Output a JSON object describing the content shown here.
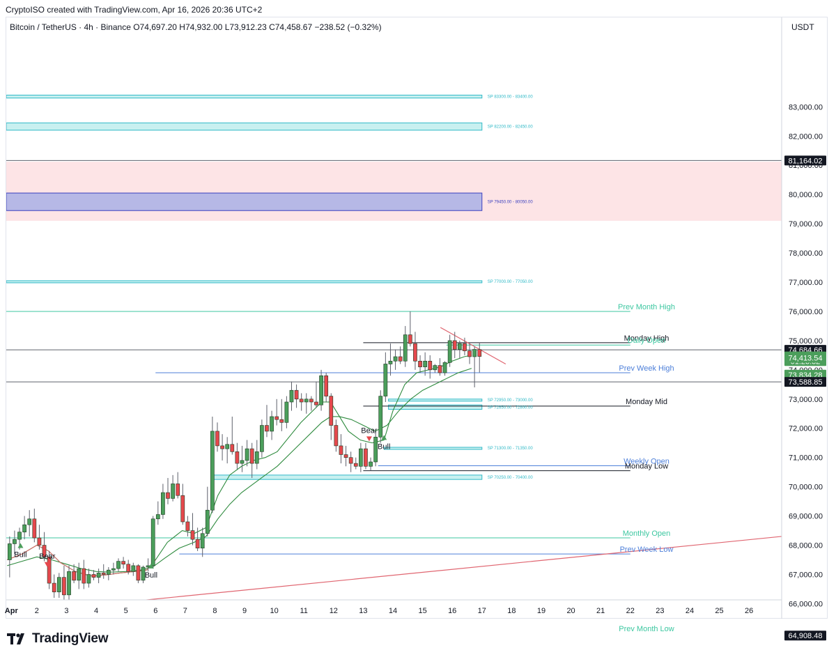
{
  "caption": "CryptoISO created with TradingView.com, Apr 16, 2026 20:36 UTC+2",
  "symbol_bar": {
    "name": "Bitcoin / TetherUS · 4h · Binance",
    "open": "O74,697.20",
    "high": "H74,932.00",
    "low": "L73,912.23",
    "close": "C74,458.67",
    "change": "−238.52 (−0.32%)"
  },
  "currency": "USDT",
  "logo": {
    "text": "TradingView",
    "icon": "tradingview-logo-icon"
  },
  "colors": {
    "bull_candle": "#4b9e5b",
    "bear_candle": "#e5484d",
    "supply_fill": "#c8f0f0",
    "supply_stroke": "#30b9c7",
    "zone_pink": "#fde4e6",
    "zone_blue_fill": "#b6b8e6",
    "zone_blue_stroke": "#3a3fbf",
    "teal_level": "#3cc7a0",
    "blue_level": "#4d7fd9",
    "trend_red": "#e06570",
    "ema_green": "#2d8a3d",
    "ema_red": "#d96a6a"
  },
  "chart_data": {
    "type": "candlestick",
    "timeframe": "4h",
    "y_range": [
      65200,
      84700
    ],
    "y_ticks": [
      66000,
      67000,
      68000,
      69000,
      70000,
      71000,
      72000,
      73000,
      74000,
      75000,
      76000,
      77000,
      78000,
      79000,
      80000,
      81000,
      82000,
      83000
    ],
    "y_tick_labels": [
      "66,000.00",
      "67,000.00",
      "68,000.00",
      "69,000.00",
      "70,000.00",
      "71,000.00",
      "72,000.00",
      "73,000.00",
      "74,000.00",
      "75,000.00",
      "76,000.00",
      "77,000.00",
      "78,000.00",
      "79,000.00",
      "80,000.00",
      "81,000.00",
      "82,000.00",
      "83,000.00"
    ],
    "x_labels": [
      {
        "label": "Apr",
        "day": 1
      },
      {
        "label": "2",
        "day": 2
      },
      {
        "label": "3",
        "day": 3
      },
      {
        "label": "4",
        "day": 4
      },
      {
        "label": "5",
        "day": 5
      },
      {
        "label": "6",
        "day": 6
      },
      {
        "label": "7",
        "day": 7
      },
      {
        "label": "8",
        "day": 8
      },
      {
        "label": "9",
        "day": 9
      },
      {
        "label": "10",
        "day": 10
      },
      {
        "label": "11",
        "day": 11
      },
      {
        "label": "12",
        "day": 12
      },
      {
        "label": "13",
        "day": 13
      },
      {
        "label": "14",
        "day": 14
      },
      {
        "label": "15",
        "day": 15
      },
      {
        "label": "16",
        "day": 16
      },
      {
        "label": "17",
        "day": 17
      },
      {
        "label": "18",
        "day": 18
      },
      {
        "label": "19",
        "day": 19
      },
      {
        "label": "20",
        "day": 20
      },
      {
        "label": "21",
        "day": 21
      },
      {
        "label": "22",
        "day": 22
      },
      {
        "label": "23",
        "day": 23
      },
      {
        "label": "24",
        "day": 24
      },
      {
        "label": "25",
        "day": 25
      },
      {
        "label": "26",
        "day": 26
      }
    ],
    "x_range_days": [
      0.97,
      27.1
    ],
    "price_badges": [
      {
        "value": 81164.02,
        "text": "81,164.02",
        "style": "dark"
      },
      {
        "value": 74684.66,
        "text": "74,684.66",
        "style": "dark"
      },
      {
        "value": 74458.67,
        "text": "74,458.67",
        "style": "green"
      },
      {
        "value": 74300.0,
        "text": "01:23:32",
        "style": "green"
      },
      {
        "value": 74413.54,
        "text": "74,413.54",
        "style": "green"
      },
      {
        "value": 73834.28,
        "text": "73,834.28",
        "style": "green"
      },
      {
        "value": 73588.85,
        "text": "73,588.85",
        "style": "dark"
      },
      {
        "value": 64908.48,
        "text": "64,908.48",
        "style": "dark"
      }
    ],
    "zones": [
      {
        "kind": "supply",
        "low": 83300,
        "high": 83400,
        "from_day": 0.97,
        "to_day": 17.0,
        "label": "SP 83300.00 - 83400.00"
      },
      {
        "kind": "supply",
        "low": 82200,
        "high": 82450,
        "from_day": 0.97,
        "to_day": 17.0,
        "label": "SP 82200.00 - 82450.00"
      },
      {
        "kind": "pink",
        "low": 79100,
        "high": 81120,
        "from_day": 0.97,
        "to_day": 27.1,
        "label": ""
      },
      {
        "kind": "blue",
        "low": 79450,
        "high": 80050,
        "from_day": 0.97,
        "to_day": 17.0,
        "label": "SP 79450.00 - 80050.00"
      },
      {
        "kind": "supply",
        "low": 77000,
        "high": 77050,
        "from_day": 0.97,
        "to_day": 17.0,
        "label": "SP 77000.00 - 77050.00"
      },
      {
        "kind": "supply",
        "low": 72950,
        "high": 73000,
        "from_day": 13.85,
        "to_day": 17.0,
        "label": "SP 72950.00 - 73000.00"
      },
      {
        "kind": "supply",
        "low": 72650,
        "high": 72800,
        "from_day": 13.85,
        "to_day": 17.0,
        "label": "SP 72650.00 - 72800.00"
      },
      {
        "kind": "supply",
        "low": 71300,
        "high": 71350,
        "from_day": 13.7,
        "to_day": 17.0,
        "label": "SP 71300.00 - 71350.00"
      },
      {
        "kind": "supply",
        "low": 70250,
        "high": 70400,
        "from_day": 7.95,
        "to_day": 17.0,
        "label": "SP 70250.00 - 70400.00"
      }
    ],
    "levels": [
      {
        "name": "Prev Month High",
        "value": 76000,
        "from_day": 0.97,
        "to_day": 22.0,
        "color": "teal"
      },
      {
        "name": "Monday High",
        "value": 74930,
        "from_day": 13.0,
        "to_day": 22.0,
        "color": "dark"
      },
      {
        "name": "Daily Open",
        "value": 74850,
        "from_day": 15.8,
        "to_day": 22.0,
        "color": "teal"
      },
      {
        "name": "Prev Week High",
        "value": 73900,
        "from_day": 6.0,
        "to_day": 22.0,
        "color": "blue"
      },
      {
        "name": "Monday Mid",
        "value": 72760,
        "from_day": 13.0,
        "to_day": 22.0,
        "color": "dark"
      },
      {
        "name": "Weekly Open",
        "value": 70720,
        "from_day": 13.5,
        "to_day": 22.0,
        "color": "blue"
      },
      {
        "name": "Monday Low",
        "value": 70550,
        "from_day": 13.0,
        "to_day": 22.0,
        "color": "dark"
      },
      {
        "name": "Monthly Open",
        "value": 68250,
        "from_day": 0.97,
        "to_day": 22.0,
        "color": "teal"
      },
      {
        "name": "Prev Week Low",
        "value": 67700,
        "from_day": 6.8,
        "to_day": 22.0,
        "color": "blue"
      },
      {
        "name": "Prev Month Low",
        "value": 64980,
        "from_day": 0.97,
        "to_day": 22.0,
        "color": "teal"
      }
    ],
    "horizontal_rays": [
      {
        "value": 81164.02
      },
      {
        "value": 74684.66
      },
      {
        "value": 73588.85
      },
      {
        "value": 64908.48
      }
    ],
    "trendlines": [
      {
        "from": [
          0.97,
          65650
        ],
        "to": [
          27.1,
          68300
        ]
      },
      {
        "from": [
          15.6,
          75450
        ],
        "to": [
          17.8,
          74200
        ]
      }
    ],
    "signals": [
      {
        "text": "Bull",
        "day": 1.45,
        "value": 68000,
        "dir": "up"
      },
      {
        "text": "Bear",
        "day": 2.35,
        "value": 67350,
        "dir": "down"
      },
      {
        "text": "Bull",
        "day": 5.85,
        "value": 67300,
        "dir": "up"
      },
      {
        "text": "Bear",
        "day": 13.2,
        "value": 71650,
        "dir": "down"
      },
      {
        "text": "Bull",
        "day": 13.7,
        "value": 71700,
        "dir": "up"
      }
    ],
    "candles_start_day": 1.0,
    "candles_per_day": 6,
    "candles": [
      [
        67500,
        68300,
        66900,
        68050
      ],
      [
        68050,
        68500,
        67700,
        68200
      ],
      [
        68200,
        68600,
        67850,
        68450
      ],
      [
        68450,
        69000,
        68200,
        68700
      ],
      [
        68700,
        69200,
        68300,
        68900
      ],
      [
        68900,
        69250,
        68100,
        68250
      ],
      [
        68250,
        68700,
        67850,
        68000
      ],
      [
        68000,
        68450,
        67450,
        67600
      ],
      [
        67600,
        67800,
        66500,
        66700
      ],
      [
        66700,
        67000,
        66200,
        66400
      ],
      [
        66400,
        67050,
        66200,
        66900
      ],
      [
        66900,
        67300,
        65700,
        66300
      ],
      [
        66300,
        67300,
        66000,
        67100
      ],
      [
        67100,
        67350,
        66700,
        66800
      ],
      [
        66800,
        67400,
        66500,
        67200
      ],
      [
        67200,
        67500,
        66500,
        66700
      ],
      [
        66700,
        67200,
        66550,
        67000
      ],
      [
        67000,
        67150,
        66800,
        66900
      ],
      [
        66900,
        67200,
        66700,
        67050
      ],
      [
        67050,
        67350,
        66850,
        67000
      ],
      [
        67000,
        67250,
        66800,
        67150
      ],
      [
        67150,
        67400,
        67000,
        67200
      ],
      [
        67200,
        67550,
        67100,
        67450
      ],
      [
        67450,
        67600,
        67200,
        67350
      ],
      [
        67350,
        67500,
        67000,
        67100
      ],
      [
        67100,
        67400,
        66950,
        67300
      ],
      [
        67300,
        67350,
        66700,
        66800
      ],
      [
        66800,
        67300,
        66700,
        67250
      ],
      [
        67250,
        67550,
        67100,
        67300
      ],
      [
        67300,
        69000,
        67200,
        68900
      ],
      [
        68900,
        69500,
        68700,
        69050
      ],
      [
        69050,
        70100,
        68900,
        69800
      ],
      [
        69800,
        70300,
        69400,
        69600
      ],
      [
        69600,
        70400,
        69500,
        70100
      ],
      [
        70100,
        70500,
        69600,
        69700
      ],
      [
        69700,
        70100,
        68700,
        68800
      ],
      [
        68800,
        69000,
        68300,
        68500
      ],
      [
        68500,
        69100,
        68000,
        68200
      ],
      [
        68200,
        68600,
        67800,
        67900
      ],
      [
        67900,
        68600,
        67600,
        68400
      ],
      [
        68400,
        70000,
        68300,
        69200
      ],
      [
        69200,
        72400,
        69100,
        71900
      ],
      [
        71900,
        72200,
        71200,
        71400
      ],
      [
        71400,
        71800,
        70900,
        71300
      ],
      [
        71300,
        71700,
        70800,
        71450
      ],
      [
        71450,
        72400,
        71100,
        71200
      ],
      [
        71200,
        71500,
        70600,
        70800
      ],
      [
        70800,
        71400,
        70500,
        70900
      ],
      [
        70900,
        71600,
        70700,
        71300
      ],
      [
        71300,
        71500,
        70300,
        70800
      ],
      [
        70800,
        71600,
        70600,
        71200
      ],
      [
        71200,
        72300,
        71000,
        72100
      ],
      [
        72100,
        72800,
        71700,
        71900
      ],
      [
        71900,
        72600,
        71600,
        72400
      ],
      [
        72400,
        73000,
        72100,
        72300
      ],
      [
        72300,
        73000,
        71900,
        72200
      ],
      [
        72200,
        73100,
        72000,
        72900
      ],
      [
        72900,
        73600,
        72600,
        73300
      ],
      [
        73300,
        73500,
        72700,
        73000
      ],
      [
        73000,
        73200,
        72600,
        72900
      ],
      [
        72900,
        73200,
        72500,
        73000
      ],
      [
        73000,
        73100,
        72600,
        72900
      ],
      [
        72900,
        73600,
        72700,
        72800
      ],
      [
        72800,
        74000,
        72600,
        73800
      ],
      [
        73800,
        73900,
        72900,
        73100
      ],
      [
        73100,
        73200,
        71600,
        72100
      ],
      [
        72100,
        72300,
        71200,
        71400
      ],
      [
        71400,
        71800,
        70800,
        71100
      ],
      [
        71100,
        71400,
        70700,
        71000
      ],
      [
        71000,
        71200,
        70500,
        70800
      ],
      [
        70800,
        71000,
        70600,
        70700
      ],
      [
        70700,
        71500,
        70500,
        71300
      ],
      [
        71300,
        71500,
        70600,
        70700
      ],
      [
        70700,
        71000,
        70550,
        70850
      ],
      [
        70850,
        71900,
        70700,
        71700
      ],
      [
        71700,
        73300,
        71500,
        73100
      ],
      [
        73100,
        74600,
        72900,
        74200
      ],
      [
        74200,
        74900,
        73800,
        74300
      ],
      [
        74300,
        74700,
        74000,
        74450
      ],
      [
        74450,
        74800,
        74200,
        74300
      ],
      [
        74300,
        75500,
        74100,
        75200
      ],
      [
        75200,
        76000,
        74800,
        74900
      ],
      [
        74900,
        75300,
        74000,
        74300
      ],
      [
        74300,
        74500,
        73900,
        74100
      ],
      [
        74100,
        74600,
        73800,
        74300
      ],
      [
        74300,
        74500,
        73700,
        74000
      ],
      [
        74000,
        74200,
        73900,
        74150
      ],
      [
        74150,
        74400,
        73800,
        73900
      ],
      [
        73900,
        74300,
        73800,
        74250
      ],
      [
        74250,
        75200,
        74100,
        75000
      ],
      [
        75000,
        75300,
        74400,
        74700
      ],
      [
        74700,
        75000,
        74400,
        74900
      ],
      [
        74900,
        75100,
        74500,
        74650
      ],
      [
        74650,
        74900,
        74200,
        74450
      ],
      [
        74450,
        74800,
        73400,
        74700
      ],
      [
        74697.2,
        74932,
        73912.23,
        74458.67
      ]
    ],
    "ema_fast": [
      [
        1.0,
        67500
      ],
      [
        1.5,
        67700
      ],
      [
        2.0,
        68000
      ],
      [
        2.4,
        67800
      ],
      [
        2.8,
        67400
      ],
      [
        3.3,
        67100
      ],
      [
        3.8,
        66950
      ],
      [
        4.3,
        66980
      ],
      [
        4.8,
        67050
      ],
      [
        5.3,
        67100
      ],
      [
        5.7,
        67150
      ],
      [
        6.0,
        67500
      ],
      [
        6.4,
        68100
      ],
      [
        6.9,
        68500
      ],
      [
        7.3,
        68400
      ],
      [
        7.7,
        68600
      ],
      [
        8.1,
        69700
      ],
      [
        8.5,
        70400
      ],
      [
        8.9,
        70700
      ],
      [
        9.3,
        70900
      ],
      [
        9.7,
        71000
      ],
      [
        10.1,
        71200
      ],
      [
        10.5,
        71700
      ],
      [
        10.9,
        72200
      ],
      [
        11.3,
        72600
      ],
      [
        11.6,
        72900
      ],
      [
        11.9,
        72900
      ],
      [
        12.2,
        72400
      ],
      [
        12.5,
        71900
      ],
      [
        12.9,
        71600
      ],
      [
        13.3,
        71500
      ],
      [
        13.7,
        71600
      ],
      [
        14.0,
        72600
      ],
      [
        14.4,
        73500
      ],
      [
        14.8,
        73900
      ],
      [
        15.2,
        74000
      ],
      [
        15.6,
        74100
      ],
      [
        16.0,
        74300
      ],
      [
        16.4,
        74450
      ],
      [
        16.65,
        74500
      ]
    ],
    "ema_slow": [
      [
        1.0,
        67300
      ],
      [
        1.5,
        67450
      ],
      [
        2.0,
        67600
      ],
      [
        2.5,
        67500
      ],
      [
        3.0,
        67350
      ],
      [
        3.5,
        67200
      ],
      [
        4.0,
        67100
      ],
      [
        4.5,
        67080
      ],
      [
        5.0,
        67100
      ],
      [
        5.5,
        67150
      ],
      [
        5.9,
        67250
      ],
      [
        6.3,
        67550
      ],
      [
        6.8,
        67900
      ],
      [
        7.3,
        68100
      ],
      [
        7.7,
        68300
      ],
      [
        8.1,
        68900
      ],
      [
        8.5,
        69400
      ],
      [
        8.9,
        69800
      ],
      [
        9.3,
        70100
      ],
      [
        9.7,
        70400
      ],
      [
        10.1,
        70700
      ],
      [
        10.5,
        71100
      ],
      [
        10.9,
        71500
      ],
      [
        11.3,
        71900
      ],
      [
        11.6,
        72200
      ],
      [
        11.9,
        72400
      ],
      [
        12.2,
        72400
      ],
      [
        12.6,
        72300
      ],
      [
        13.0,
        72100
      ],
      [
        13.4,
        71900
      ],
      [
        13.8,
        72100
      ],
      [
        14.2,
        72600
      ],
      [
        14.6,
        73000
      ],
      [
        15.0,
        73300
      ],
      [
        15.4,
        73500
      ],
      [
        15.8,
        73700
      ],
      [
        16.2,
        73900
      ],
      [
        16.65,
        74050
      ]
    ]
  }
}
